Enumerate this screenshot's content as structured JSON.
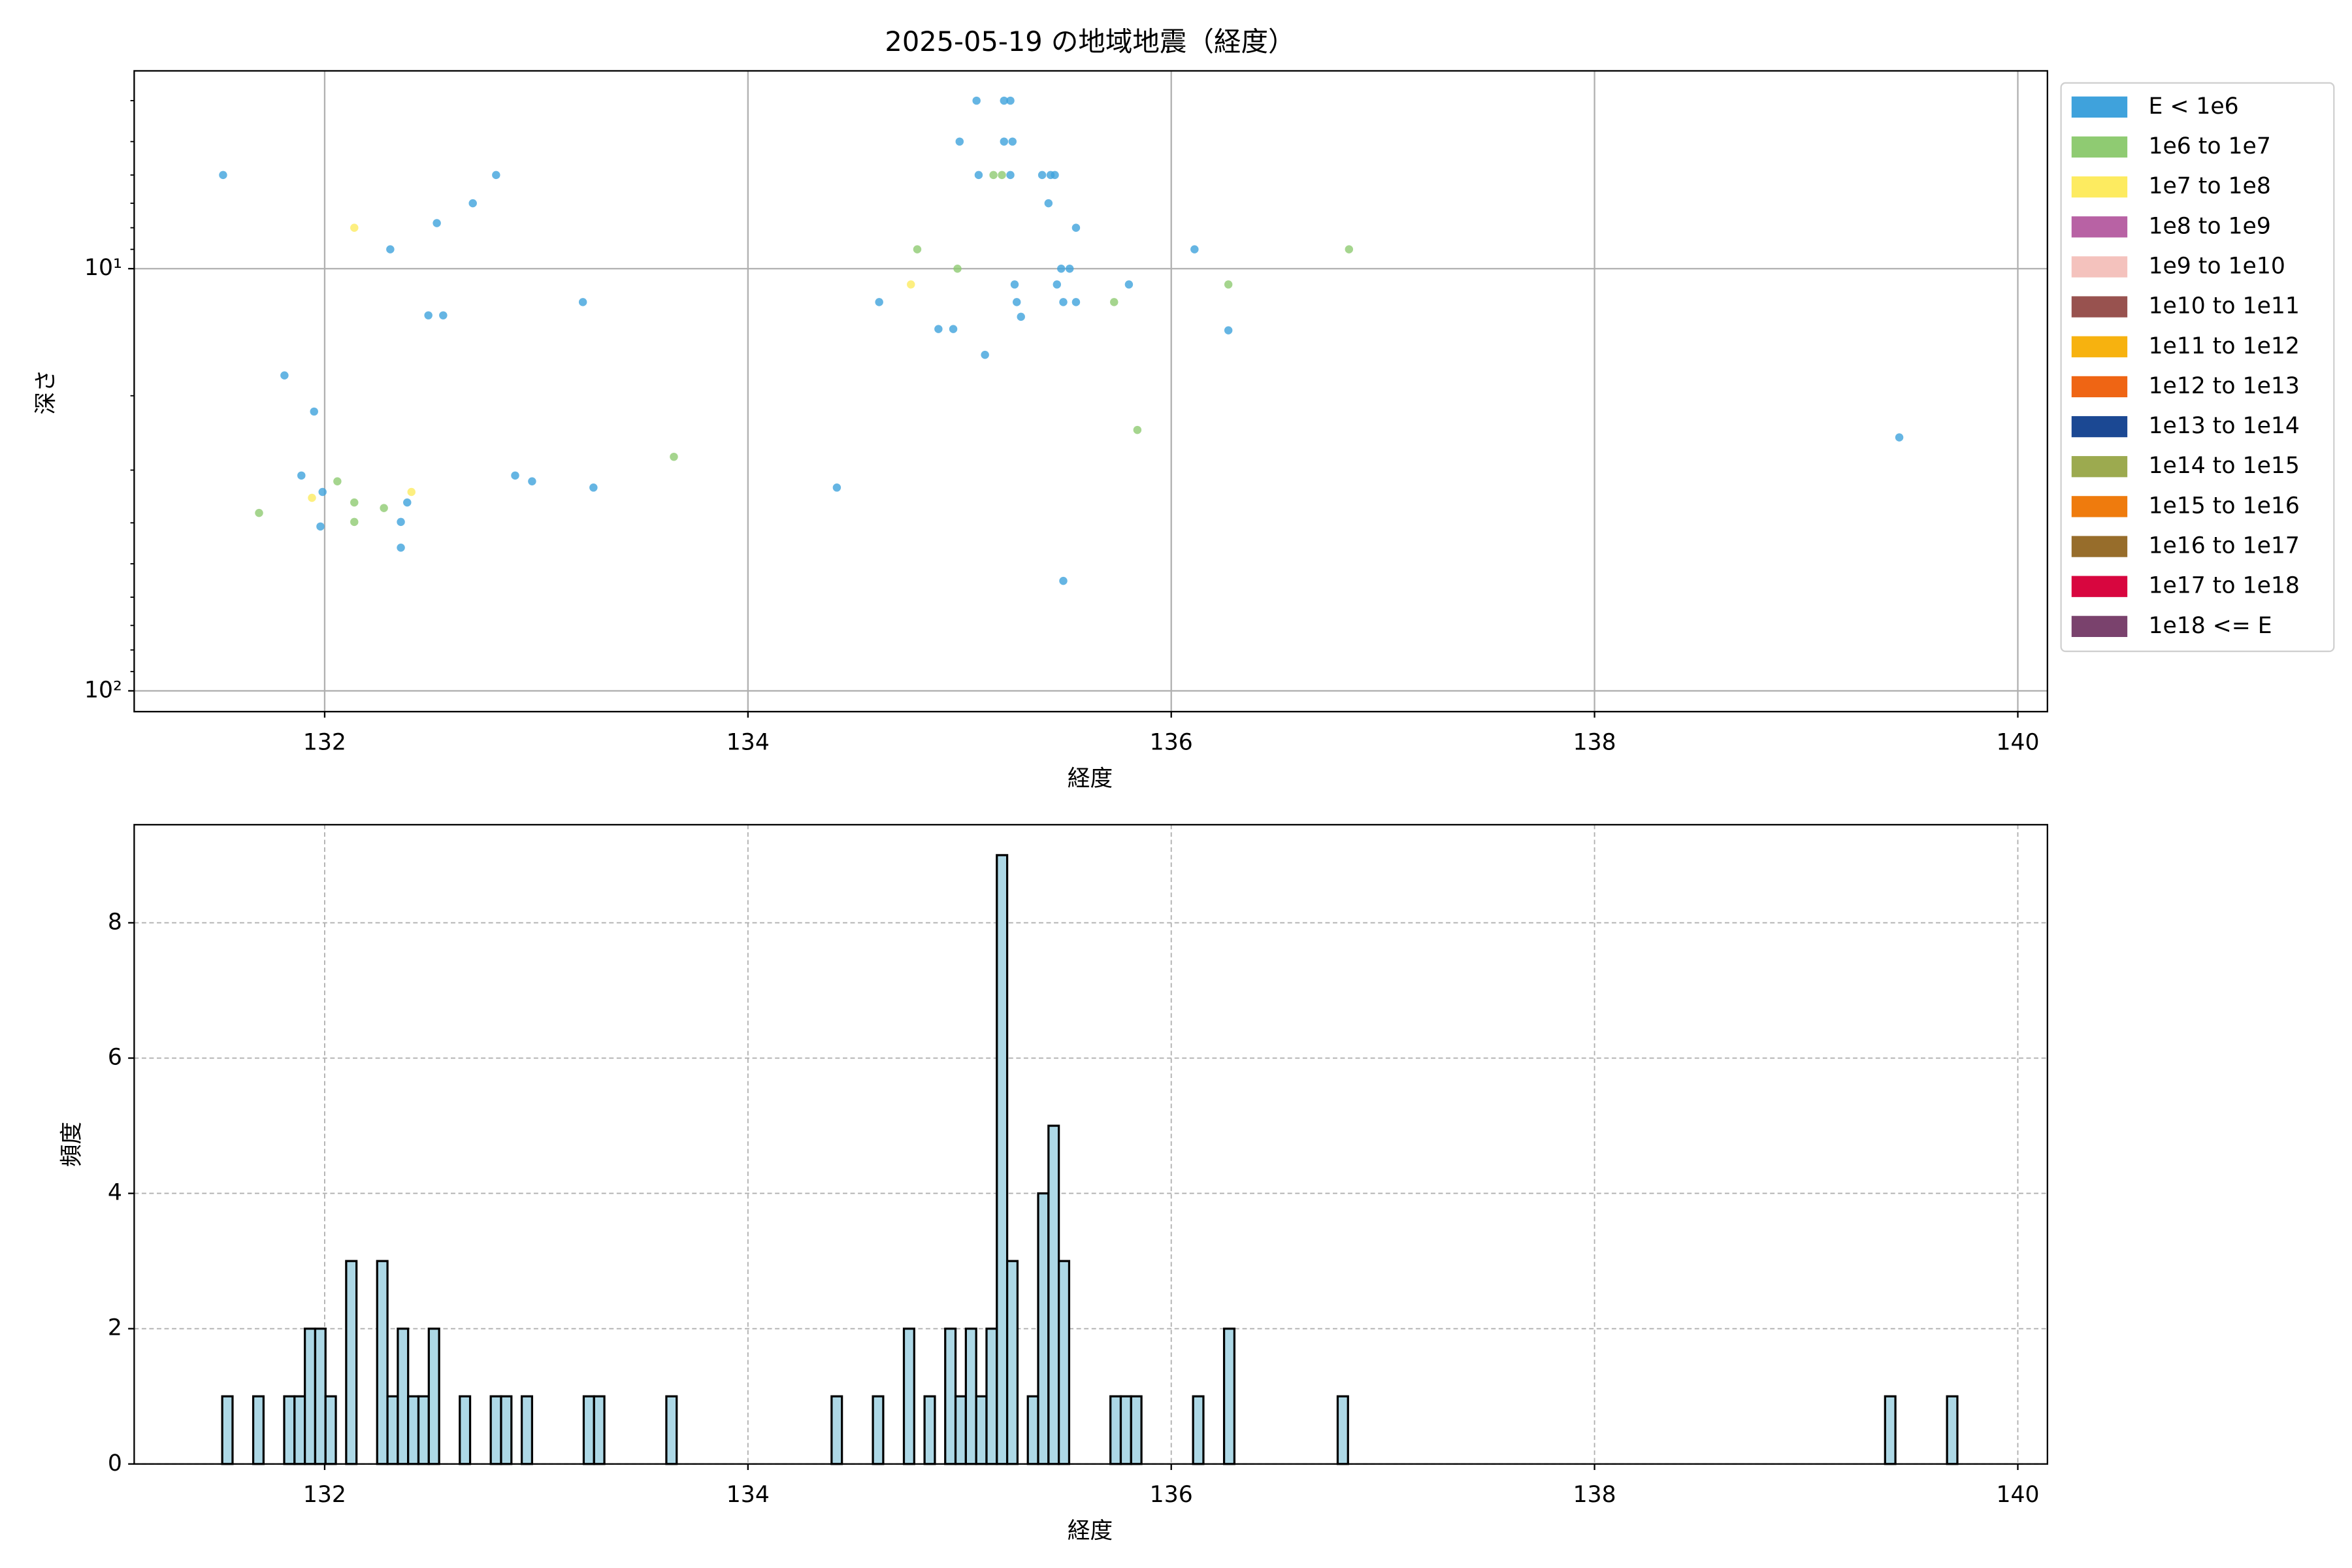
{
  "chart_data": [
    {
      "type": "scatter",
      "title": "2025-05-19 の地域地震（経度）",
      "xlabel": "経度",
      "ylabel": "深さ",
      "xlim": [
        131.1,
        140.14
      ],
      "xticks": [
        132,
        134,
        136,
        138,
        140
      ],
      "ylim": [
        3.4,
        112
      ],
      "log_y": true,
      "y_inverted": true,
      "yticks": [
        {
          "value": 10,
          "label": "10¹"
        },
        {
          "value": 100,
          "label": "10²"
        }
      ],
      "yticks_minor": [
        4,
        5,
        6,
        7,
        8,
        9,
        20,
        30,
        40,
        50,
        60,
        70,
        80,
        90
      ],
      "grid": true,
      "legend": "outside right",
      "series": [
        {
          "name": "E < 1e6",
          "color": "#3fa2dc",
          "x": [
            131.52,
            131.81,
            131.95,
            131.89,
            131.99,
            131.98,
            132.31,
            132.53,
            132.49,
            132.56,
            132.7,
            132.81,
            132.39,
            132.36,
            132.36,
            132.9,
            132.98,
            133.22,
            133.27,
            134.42,
            134.62,
            134.9,
            134.97,
            135.12,
            135.0,
            135.08,
            135.09,
            135.21,
            135.24,
            135.21,
            135.25,
            135.24,
            135.26,
            135.27,
            135.29,
            135.39,
            135.43,
            135.45,
            135.42,
            135.46,
            135.48,
            135.52,
            135.49,
            135.55,
            135.55,
            135.49,
            135.8,
            136.11,
            136.27,
            139.44
          ],
          "values": [
            6.0,
            17.9,
            21.8,
            30.9,
            33.8,
            40.8,
            9.0,
            7.8,
            12.9,
            12.9,
            7.0,
            6.0,
            35.8,
            39.8,
            45.8,
            30.9,
            31.9,
            12.0,
            33.0,
            33.0,
            12.0,
            13.9,
            13.9,
            16.0,
            5.0,
            4.0,
            6.0,
            4.0,
            4.0,
            5.0,
            5.0,
            6.0,
            10.9,
            12.0,
            13.0,
            6.0,
            6.0,
            6.0,
            7.0,
            10.9,
            10.0,
            10.0,
            12.0,
            12.0,
            8.0,
            54.9,
            10.9,
            9.0,
            14.0,
            25.1
          ]
        },
        {
          "name": "1e6 to 1e7",
          "color": "#8fcb72",
          "x": [
            131.69,
            132.06,
            132.14,
            132.14,
            132.28,
            133.65,
            134.8,
            134.99,
            135.16,
            135.2,
            135.73,
            135.84,
            136.27,
            136.84
          ],
          "values": [
            37.9,
            31.9,
            35.8,
            39.8,
            36.9,
            27.9,
            9.0,
            10.0,
            6.0,
            6.0,
            12.0,
            24.1,
            10.9,
            9.0
          ]
        },
        {
          "name": "1e7 to 1e8",
          "color": "#fdeb60",
          "x": [
            132.14,
            131.94,
            132.41,
            134.77
          ],
          "values": [
            8.0,
            34.9,
            33.8,
            10.9
          ]
        },
        {
          "name": "1e8 to 1e9",
          "color": "#b862a4",
          "x": [],
          "values": []
        },
        {
          "name": "1e9 to 1e10",
          "color": "#f4c2bd",
          "x": [],
          "values": []
        },
        {
          "name": "1e10 to 1e11",
          "color": "#98524f",
          "x": [],
          "values": []
        },
        {
          "name": "1e11 to 1e12",
          "color": "#f7b20f",
          "x": [],
          "values": []
        },
        {
          "name": "1e12 to 1e13",
          "color": "#ef6514",
          "x": [],
          "values": []
        },
        {
          "name": "1e13 to 1e14",
          "color": "#1b4893",
          "x": [],
          "values": []
        },
        {
          "name": "1e14 to 1e15",
          "color": "#9caa4f",
          "x": [],
          "values": []
        },
        {
          "name": "1e15 to 1e16",
          "color": "#ef7b0d",
          "x": [],
          "values": []
        },
        {
          "name": "1e16 to 1e17",
          "color": "#976d2b",
          "x": [],
          "values": []
        },
        {
          "name": "1e17 to 1e18",
          "color": "#d8063f",
          "x": [],
          "values": []
        },
        {
          "name": "1e18 <= E",
          "color": "#7a426d",
          "x": [],
          "values": []
        }
      ]
    },
    {
      "type": "histogram",
      "xlabel": "経度",
      "ylabel": "頻度",
      "xlim": [
        131.1,
        140.14
      ],
      "xticks": [
        132,
        134,
        136,
        138,
        140
      ],
      "ylim": [
        0,
        9.45
      ],
      "yticks": [
        0,
        2,
        4,
        6,
        8
      ],
      "grid": "dashed",
      "color": "#add8e6",
      "edgecolor": "#000000",
      "bins": [
        131.516,
        131.5648,
        131.6136,
        131.6624,
        131.7112,
        131.76,
        131.8088,
        131.8576,
        131.9064,
        131.9552,
        132.004,
        132.0528,
        132.1016,
        132.1504,
        132.1992,
        132.248,
        132.2968,
        132.3456,
        132.3944,
        132.4432,
        132.492,
        132.5408,
        132.5896,
        132.6384,
        132.6872,
        132.736,
        132.7848,
        132.8336,
        132.8824,
        132.9312,
        132.98,
        133.0288,
        133.0776,
        133.1264,
        133.1752,
        133.224,
        133.2728,
        133.3216,
        133.3704,
        133.4192,
        133.468,
        133.5168,
        133.5656,
        133.6144,
        133.6632,
        133.712,
        133.7608,
        133.8096,
        133.8584,
        133.9072,
        133.956,
        134.0048,
        134.0536,
        134.1024,
        134.1512,
        134.2,
        134.2488,
        134.2976,
        134.3464,
        134.3952,
        134.444,
        134.4928,
        134.5416,
        134.5904,
        134.6392,
        134.688,
        134.7368,
        134.7856,
        134.8344,
        134.8832,
        134.932,
        134.9808,
        135.0296,
        135.0784,
        135.1272,
        135.176,
        135.2248,
        135.2736,
        135.3224,
        135.3712,
        135.42,
        135.4688,
        135.5176,
        135.5664,
        135.6152,
        135.664,
        135.7128,
        135.7616,
        135.8104,
        135.8592,
        135.908,
        135.9568,
        136.0056,
        136.0544,
        136.1032,
        136.152,
        136.2008,
        136.2496,
        136.2984,
        136.3472,
        136.396,
        136.4448,
        136.4936,
        136.5424,
        136.5912,
        136.64,
        136.6888,
        136.7376,
        136.7864,
        136.8352,
        136.884,
        136.9328,
        136.9816,
        137.0304,
        137.0792,
        137.128,
        137.1768,
        137.2256,
        137.2744,
        137.3232,
        137.372,
        137.4208,
        137.4696,
        137.5184,
        137.5672,
        137.616,
        137.6648,
        137.7136,
        137.7624,
        137.8112,
        137.86,
        137.9088,
        137.9576,
        138.0064,
        138.0552,
        138.104,
        138.1528,
        138.2016,
        138.2504,
        138.2992,
        138.348,
        138.3968,
        138.4456,
        138.4944,
        138.5432,
        138.592,
        138.6408,
        138.6896,
        138.7384,
        138.7872,
        138.836,
        138.8848,
        138.9336,
        138.9824,
        139.0312,
        139.08,
        139.1288,
        139.1776,
        139.2264,
        139.2752,
        139.324,
        139.3728,
        139.4216,
        139.4704,
        139.5192,
        139.568,
        139.6168,
        139.6656,
        139.7144
      ],
      "counts": [
        1,
        0,
        0,
        1,
        0,
        0,
        1,
        1,
        2,
        2,
        1,
        0,
        3,
        0,
        0,
        3,
        1,
        2,
        1,
        1,
        2,
        0,
        0,
        1,
        0,
        0,
        1,
        1,
        0,
        1,
        0,
        0,
        0,
        0,
        0,
        1,
        1,
        0,
        0,
        0,
        0,
        0,
        0,
        1,
        0,
        0,
        0,
        0,
        0,
        0,
        0,
        0,
        0,
        0,
        0,
        0,
        0,
        0,
        0,
        1,
        0,
        0,
        0,
        1,
        0,
        0,
        2,
        0,
        1,
        0,
        2,
        1,
        2,
        1,
        2,
        9,
        3,
        0,
        1,
        4,
        5,
        3,
        0,
        0,
        0,
        0,
        1,
        1,
        1,
        0,
        0,
        0,
        0,
        0,
        1,
        0,
        0,
        2,
        0,
        0,
        0,
        0,
        0,
        0,
        0,
        0,
        0,
        0,
        1,
        0,
        0,
        0,
        0,
        0,
        0,
        0,
        0,
        0,
        0,
        0,
        0,
        0,
        0,
        0,
        0,
        0,
        0,
        0,
        0,
        0,
        0,
        0,
        0,
        0,
        0,
        0,
        0,
        0,
        0,
        0,
        0,
        0,
        0,
        0,
        0,
        0,
        0,
        0,
        0,
        0,
        0,
        0,
        0,
        0,
        0,
        0,
        0,
        0,
        0,
        0,
        0,
        1,
        0,
        0,
        0,
        0,
        0,
        1
      ]
    }
  ]
}
